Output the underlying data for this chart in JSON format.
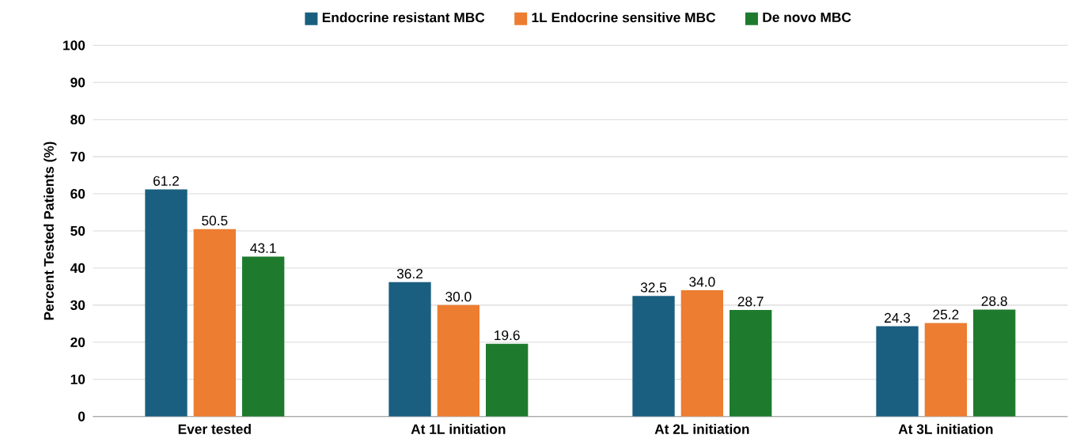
{
  "chart_data": {
    "type": "bar",
    "ylabel": "Percent Tested Patients (%)",
    "categories": [
      "Ever tested",
      "At 1L initiation",
      "At 2L initiation",
      "At 3L initiation"
    ],
    "series": [
      {
        "name": "Endocrine resistant MBC",
        "color": "#1a5f80",
        "values": [
          61.2,
          36.2,
          32.5,
          24.3
        ],
        "value_labels": [
          "61.2",
          "36.2",
          "32.5",
          "24.3"
        ]
      },
      {
        "name": "1L Endocrine sensitive MBC",
        "color": "#ed7d31",
        "values": [
          50.5,
          30.0,
          34.0,
          25.2
        ],
        "value_labels": [
          "50.5",
          "30.0",
          "34.0",
          "25.2"
        ]
      },
      {
        "name": "De novo MBC",
        "color": "#1e7b2d",
        "values": [
          43.1,
          19.6,
          28.7,
          28.8
        ],
        "value_labels": [
          "43.1",
          "19.6",
          "28.7",
          "28.8"
        ]
      }
    ],
    "ylim": [
      0,
      100
    ],
    "yticks": [
      0,
      10,
      20,
      30,
      40,
      50,
      60,
      70,
      80,
      90,
      100
    ],
    "grid": "y",
    "legend": "top"
  }
}
